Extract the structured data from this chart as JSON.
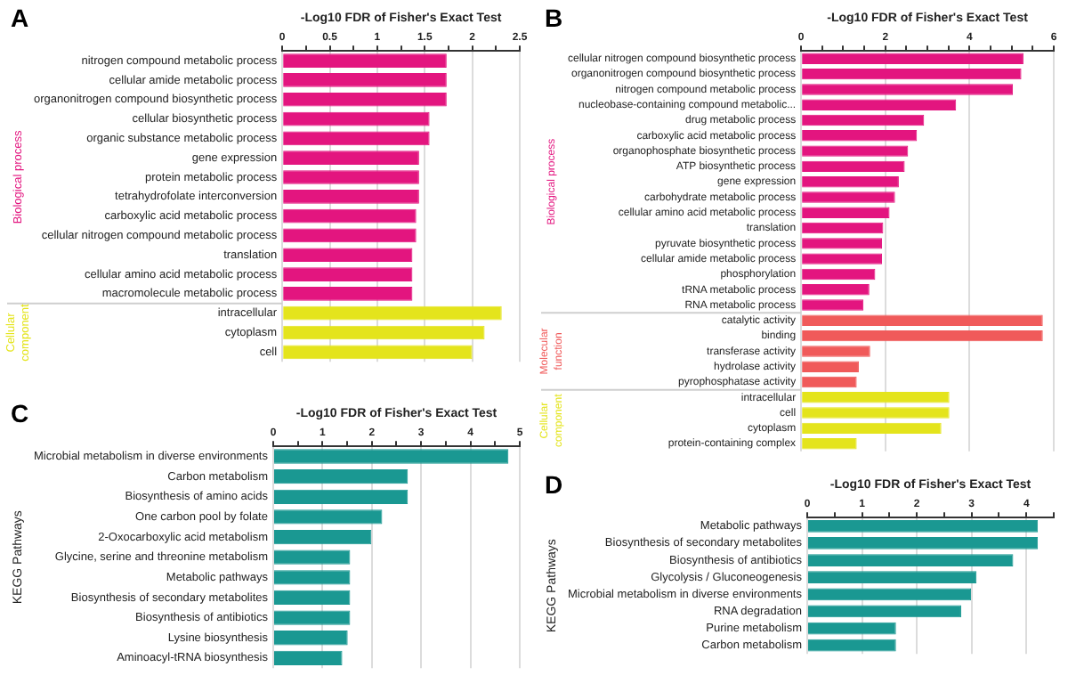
{
  "chart_data": [
    {
      "type": "bar",
      "title": "A",
      "orientation": "horizontal",
      "xlabel": "-Log10 FDR of Fisher's Exact Test",
      "grid": "x",
      "categories": [
        "nitrogen compound metabolic process",
        "cellular amide metabolic process",
        "organonitrogen compound biosynthetic process",
        "cellular biosynthetic process",
        "organic substance metabolic process",
        "gene expression",
        "protein metabolic process",
        "tetrahydrofolate interconversion",
        "carboxylic acid metabolic process",
        "cellular nitrogen compound metabolic process",
        "translation",
        "cellular amino acid metabolic process",
        "macromolecule metabolic process",
        "intracellular",
        "cytoplasm",
        "cell"
      ],
      "series": [
        {
          "name": "Biological process",
          "color": "#e3157f",
          "values": [
            1.73,
            1.73,
            1.73,
            1.55,
            1.55,
            1.44,
            1.44,
            1.44,
            1.41,
            1.41,
            1.37,
            1.37,
            1.37,
            null,
            null,
            null
          ]
        },
        {
          "name": "Cellular component",
          "color": "#e4e41c",
          "values": [
            null,
            null,
            null,
            null,
            null,
            null,
            null,
            null,
            null,
            null,
            null,
            null,
            null,
            2.31,
            2.13,
            2.0
          ]
        }
      ],
      "xlim": [
        0,
        2.5
      ],
      "xticks": [
        0,
        {
          "value": 0.25,
          "label": null
        },
        0.5,
        {
          "value": 0.75,
          "label": null
        },
        1,
        {
          "value": 1.25,
          "label": null
        },
        1.5,
        {
          "value": 1.75,
          "label": null
        },
        2,
        {
          "value": 2.25,
          "label": null
        },
        2.5
      ]
    },
    {
      "type": "bar",
      "title": "B",
      "orientation": "horizontal",
      "xlabel": "-Log10 FDR of Fisher's Exact Test",
      "grid": "x",
      "categories": [
        "cellular nitrogen compound biosynthetic process",
        "organonitrogen compound biosynthetic process",
        "nitrogen compound metabolic process",
        "nucleobase-containing compound metabolic...",
        "drug metabolic process",
        "carboxylic acid metabolic process",
        "organophosphate biosynthetic process",
        "ATP biosynthetic process",
        "gene expression",
        "carbohydrate metabolic process",
        "cellular amino acid metabolic process",
        "translation",
        "pyruvate biosynthetic process",
        "cellular amide metabolic process",
        "phosphorylation",
        "tRNA metabolic process",
        "RNA metabolic process",
        "catalytic activity",
        "binding",
        "transferase activity",
        "hydrolase activity",
        "pyrophosphatase activity",
        "intracellular",
        "cell",
        "cytoplasm",
        "protein-containing complex"
      ],
      "series": [
        {
          "name": "Biological process",
          "color": "#e3157f",
          "values": [
            5.28,
            5.23,
            5.03,
            3.68,
            2.92,
            2.75,
            2.54,
            2.46,
            2.32,
            2.23,
            2.1,
            1.95,
            1.92,
            1.92,
            1.76,
            1.62,
            1.48,
            null,
            null,
            null,
            null,
            null,
            null,
            null,
            null,
            null
          ]
        },
        {
          "name": "Molecular function",
          "color": "#f05a5a",
          "values": [
            null,
            null,
            null,
            null,
            null,
            null,
            null,
            null,
            null,
            null,
            null,
            null,
            null,
            null,
            null,
            null,
            null,
            5.74,
            5.74,
            1.64,
            1.37,
            1.32,
            null,
            null,
            null,
            null
          ]
        },
        {
          "name": "Cellular component",
          "color": "#e4e41c",
          "values": [
            null,
            null,
            null,
            null,
            null,
            null,
            null,
            null,
            null,
            null,
            null,
            null,
            null,
            null,
            null,
            null,
            null,
            null,
            null,
            null,
            null,
            null,
            3.52,
            3.52,
            3.33,
            1.32
          ]
        }
      ],
      "xlim": [
        0,
        6
      ],
      "xticks": [
        0,
        {
          "value": 0.5,
          "label": null
        },
        {
          "value": 1,
          "label": null
        },
        {
          "value": 1.5,
          "label": null
        },
        2,
        {
          "value": 2.5,
          "label": null
        },
        {
          "value": 3,
          "label": null
        },
        {
          "value": 3.5,
          "label": null
        },
        4,
        {
          "value": 4.5,
          "label": null
        },
        {
          "value": 5,
          "label": null
        },
        {
          "value": 5.5,
          "label": null
        },
        6
      ]
    },
    {
      "type": "bar",
      "title": "C",
      "orientation": "horizontal",
      "xlabel": "-Log10 FDR of Fisher's Exact Test",
      "ylabel": "KEGG Pathways",
      "grid": "x",
      "categories": [
        "Microbial metabolism in diverse environments",
        "Carbon metabolism",
        "Biosynthesis of amino acids",
        "One carbon pool by folate",
        "2-Oxocarboxylic acid metabolism",
        "Glycine, serine and threonine metabolism",
        "Metabolic pathways",
        "Biosynthesis of secondary metabolites",
        "Biosynthesis of antibiotics",
        "Lysine biosynthesis",
        "Aminoacyl-tRNA biosynthesis"
      ],
      "values": [
        4.77,
        2.73,
        2.73,
        2.21,
        1.99,
        1.56,
        1.56,
        1.56,
        1.56,
        1.51,
        1.4
      ],
      "color": "#1a9892",
      "xlim": [
        0,
        5
      ],
      "xticks": [
        0,
        {
          "value": 0.5,
          "label": null
        },
        1,
        {
          "value": 1.5,
          "label": null
        },
        2,
        {
          "value": 2.5,
          "label": null
        },
        3,
        {
          "value": 3.5,
          "label": null
        },
        4,
        {
          "value": 4.5,
          "label": null
        },
        5
      ]
    },
    {
      "type": "bar",
      "title": "D",
      "orientation": "horizontal",
      "xlabel": "-Log10 FDR of Fisher's Exact Test",
      "ylabel": "KEGG Pathways",
      "grid": "x",
      "categories": [
        "Metabolic pathways",
        "Biosynthesis of secondary metabolites",
        "Biosynthesis of antibiotics",
        "Glycolysis / Gluconeogenesis",
        "Microbial metabolism in diverse environments",
        "RNA degradation",
        "Purine metabolism",
        "Carbon metabolism"
      ],
      "values": [
        4.21,
        4.21,
        3.76,
        3.09,
        2.99,
        2.81,
        1.62,
        1.62
      ],
      "color": "#1a9892",
      "xlim": [
        0,
        4.5
      ],
      "xticks": [
        0,
        {
          "value": 0.5,
          "label": null
        },
        1,
        {
          "value": 1.5,
          "label": null
        },
        2,
        {
          "value": 2.5,
          "label": null
        },
        3,
        {
          "value": 3.5,
          "label": null
        },
        4,
        {
          "value": 4.5,
          "label": null
        }
      ]
    }
  ]
}
